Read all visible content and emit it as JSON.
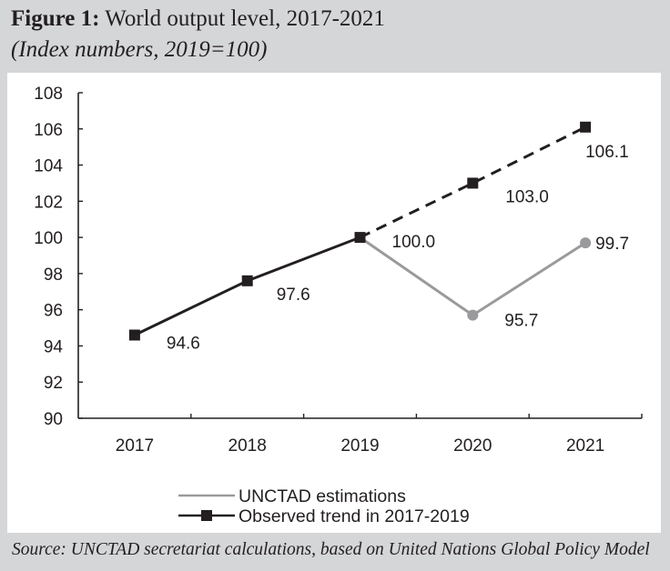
{
  "figure": {
    "title_bold": "Figure 1:",
    "title_rest": " World output level, 2017-2021",
    "subtitle": "(Index numbers, 2019=100)",
    "source": "Source: UNCTAD secretariat calculations, based on United Nations Global Policy Model"
  },
  "colors": {
    "observed": "#231f20",
    "estimations": "#9a9a9c",
    "background": "#d5d6d8",
    "panel": "#ffffff"
  },
  "chart_data": {
    "type": "line",
    "title": "World output level, 2017-2021",
    "subtitle": "(Index numbers, 2019=100)",
    "xlabel": "",
    "ylabel": "",
    "categories": [
      "2017",
      "2018",
      "2019",
      "2020",
      "2021"
    ],
    "ylim": [
      90,
      108
    ],
    "yticks": [
      90,
      92,
      94,
      96,
      98,
      100,
      102,
      104,
      106,
      108
    ],
    "grid": false,
    "legend_position": "bottom",
    "series": [
      {
        "name": "UNCTAD estimations",
        "marker": "circle",
        "line_style": "solid",
        "values": [
          null,
          null,
          100.0,
          95.7,
          99.7
        ],
        "labels": [
          null,
          null,
          null,
          "95.7",
          "99.7"
        ]
      },
      {
        "name": "Observed trend in 2017-2019",
        "marker": "square",
        "line_style": "solid (2017-2019), dashed (2019-2021 projection)",
        "values": [
          94.6,
          97.6,
          100.0,
          103.0,
          106.1
        ],
        "labels": [
          "94.6",
          "97.6",
          "100.0",
          "103.0",
          "106.1"
        ],
        "dashed_from_index": 2
      }
    ]
  }
}
